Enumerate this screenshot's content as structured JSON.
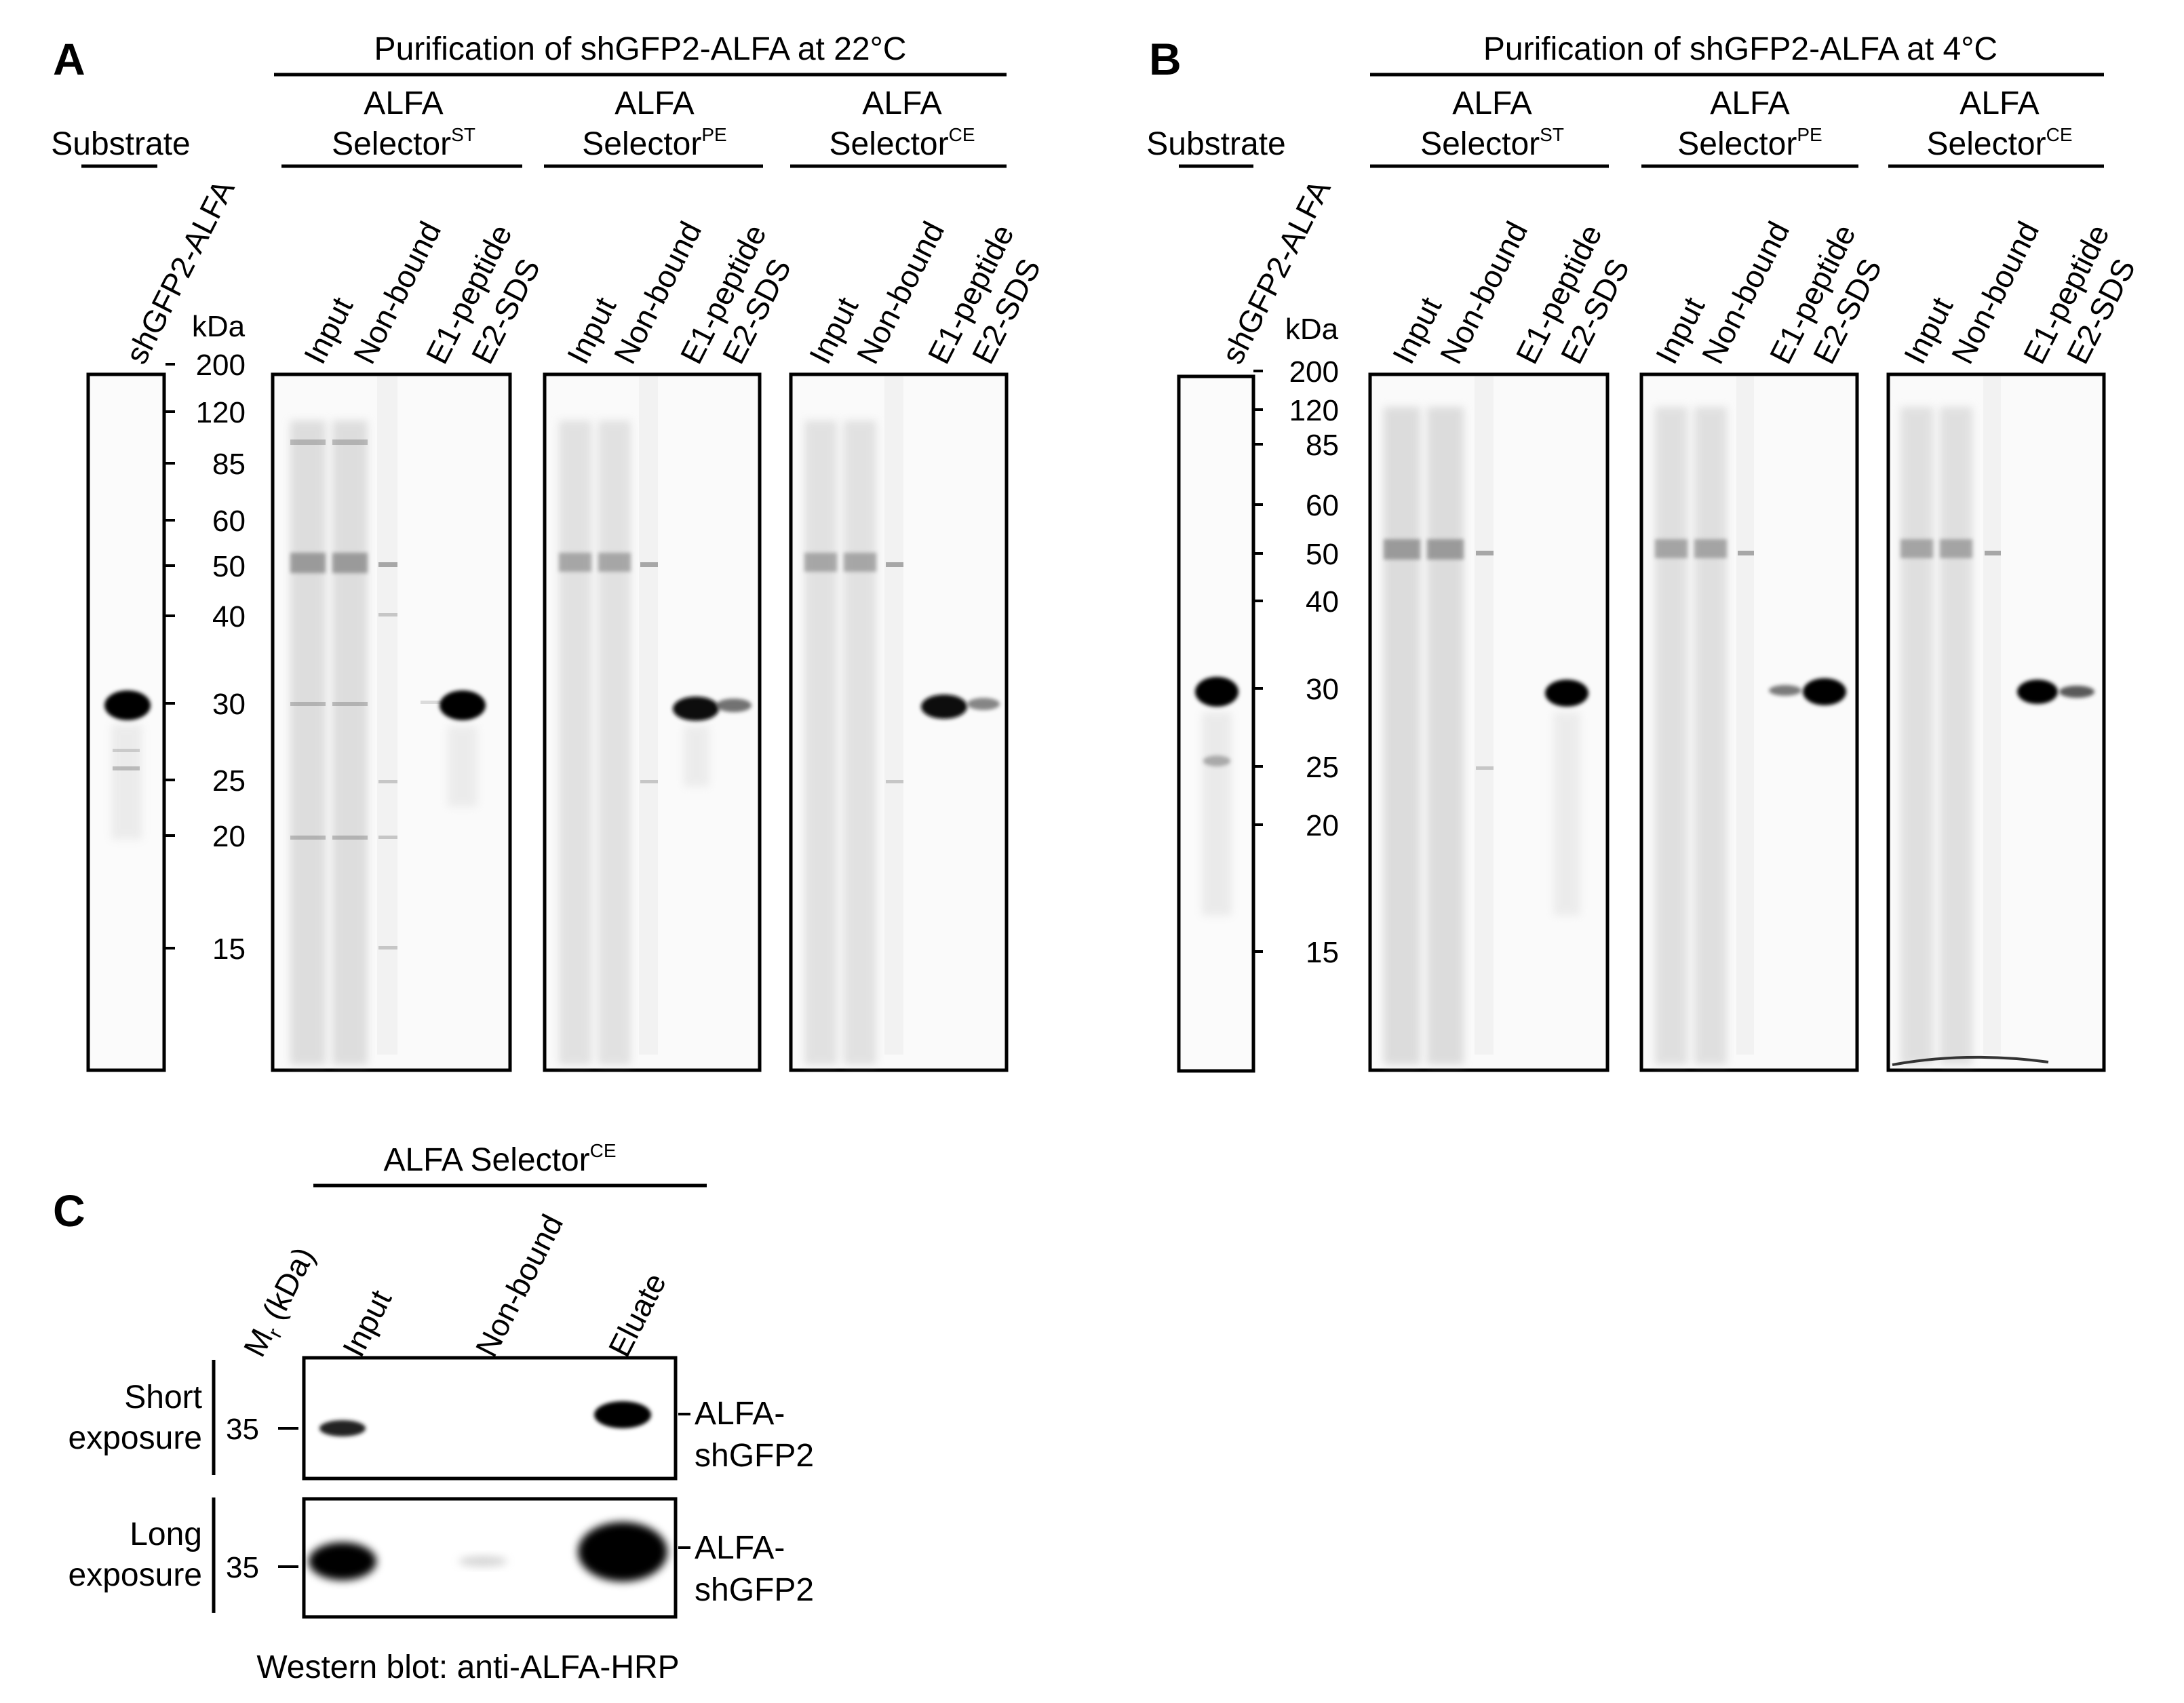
{
  "panelA": {
    "letter": "A",
    "title": "Purification of shGFP2-ALFA at 22°C",
    "substrate_label": "Substrate",
    "substrate_lane": "shGFP2-ALFA",
    "kda_label": "kDa",
    "marker_ticks": [
      "200",
      "120",
      "85",
      "60",
      "50",
      "40",
      "30",
      "25",
      "20",
      "15"
    ],
    "groups": [
      {
        "line1": "ALFA",
        "line2": "Selector",
        "sup": "ST"
      },
      {
        "line1": "ALFA",
        "line2": "Selector",
        "sup": "PE"
      },
      {
        "line1": "ALFA",
        "line2": "Selector",
        "sup": "CE"
      }
    ],
    "lanes": [
      "Input",
      "Non-bound",
      "E1-peptide",
      "E2-SDS"
    ]
  },
  "panelB": {
    "letter": "B",
    "title": "Purification of shGFP2-ALFA at 4°C",
    "substrate_label": "Substrate",
    "substrate_lane": "shGFP2-ALFA",
    "kda_label": "kDa",
    "marker_ticks": [
      "200",
      "120",
      "85",
      "60",
      "50",
      "40",
      "30",
      "25",
      "20",
      "15"
    ],
    "groups": [
      {
        "line1": "ALFA",
        "line2": "Selector",
        "sup": "ST"
      },
      {
        "line1": "ALFA",
        "line2": "Selector",
        "sup": "PE"
      },
      {
        "line1": "ALFA",
        "line2": "Selector",
        "sup": "CE"
      }
    ],
    "lanes": [
      "Input",
      "Non-bound",
      "E1-peptide",
      "E2-SDS"
    ]
  },
  "panelC": {
    "letter": "C",
    "header_main": "ALFA Selector",
    "header_sup": "CE",
    "mr_label_main": "M",
    "mr_label_sub": "r",
    "mr_label_rest": " (kDa)",
    "lanes": [
      "Input",
      "Non-bound",
      "Eluate"
    ],
    "rows": [
      {
        "label_line1": "Short",
        "label_line2": "exposure",
        "marker": "35",
        "band_line1": "ALFA-",
        "band_line2": "shGFP2"
      },
      {
        "label_line1": "Long",
        "label_line2": "exposure",
        "marker": "35",
        "band_line1": "ALFA-",
        "band_line2": "shGFP2"
      }
    ],
    "footer": "Western blot: anti-ALFA-HRP"
  }
}
